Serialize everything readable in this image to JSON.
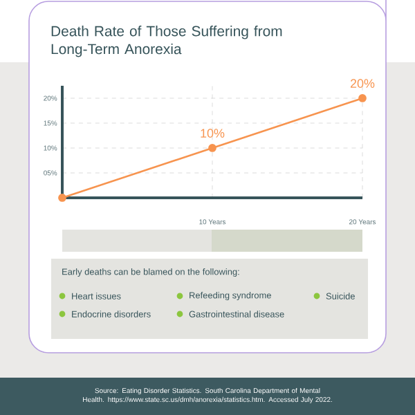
{
  "chart_data": {
    "type": "line",
    "title": "Death Rate of Those Suffering from Long-Term Anorexia",
    "x": [
      0,
      10,
      20
    ],
    "values": [
      0,
      10,
      20
    ],
    "color": "#f7944f",
    "value_labels": [
      null,
      "10%",
      "20%"
    ],
    "xlim": [
      0,
      20
    ],
    "ylim": [
      0,
      22.5
    ],
    "xticks": [
      {
        "value": 10,
        "label": "10 Years"
      },
      {
        "value": 20,
        "label": "20 Years"
      }
    ],
    "yticks": [
      {
        "value": 5,
        "label": "05%"
      },
      {
        "value": 10,
        "label": "10%"
      },
      {
        "value": 15,
        "label": "15%"
      },
      {
        "value": 20,
        "label": "20%"
      }
    ],
    "grid": true,
    "marker": "circle",
    "annotations": [
      "Early deaths can be blamed on the following:",
      "Heart issues",
      "Refeeding syndrome",
      "Suicide",
      "Endocrine disorders",
      "Gastrointestinal disease",
      "Source: Eating Disorder Statistics. South Carolina Department of Mental Health. https://www.state.sc.us/dmh/anorexia/statistics.htm. Accessed July 2022."
    ]
  }
}
